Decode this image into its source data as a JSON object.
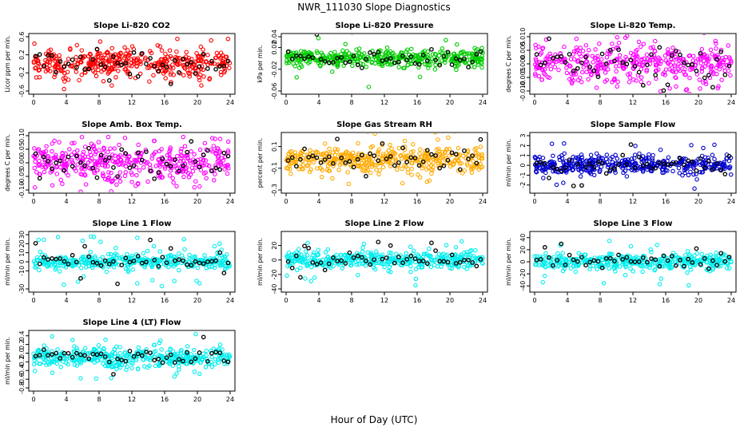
{
  "figure": {
    "title": "NWR_111030  Slope Diagnostics",
    "xlabel": "Hour of Day (UTC)"
  },
  "chart_data": [
    {
      "type": "scatter",
      "title": "Slope Li-820 CO2",
      "ylabel": "Licor ppm per min.",
      "color": "#ff0000",
      "xlim": [
        0,
        24
      ],
      "xticks": [
        "0",
        "4",
        "8",
        "12",
        "16",
        "20",
        "24"
      ],
      "ylim": [
        -0.6,
        0.6
      ],
      "yticks": [
        "-0.6",
        "-0.2",
        "0.2",
        "0.6"
      ],
      "ytick_values": [
        -0.6,
        -0.2,
        0.2,
        0.6
      ],
      "spread": 0.15,
      "outlier_range": 0.6,
      "mean_line": [
        [
          0,
          0.02
        ],
        [
          4,
          -0.05
        ],
        [
          8,
          0.0
        ],
        [
          12,
          0.08
        ],
        [
          16,
          0.0
        ],
        [
          20,
          -0.05
        ],
        [
          24,
          0.05
        ]
      ]
    },
    {
      "type": "scatter",
      "title": "Slope Li-820 Pressure",
      "ylabel": "kPa per min.",
      "color": "#00cc00",
      "xlim": [
        0,
        24
      ],
      "xticks": [
        "0",
        "4",
        "8",
        "12",
        "16",
        "20",
        "24"
      ],
      "ylim": [
        -0.06,
        0.04
      ],
      "yticks": [
        "-0.06",
        "-0.02",
        "0.02",
        "0.04"
      ],
      "ytick_values": [
        -0.06,
        -0.02,
        0.02,
        0.04
      ],
      "spread": 0.008,
      "outlier_range": 0.06,
      "mean_line": [
        [
          0,
          0.005
        ],
        [
          4,
          -0.002
        ],
        [
          8,
          0.0
        ],
        [
          12,
          0.0
        ],
        [
          16,
          -0.002
        ],
        [
          20,
          0.0
        ],
        [
          24,
          0.0
        ]
      ]
    },
    {
      "type": "scatter",
      "title": "Slope Li-820 Temp.",
      "ylabel": "degrees C per min.",
      "color": "#ff00ff",
      "xlim": [
        0,
        24
      ],
      "xticks": [
        "0",
        "4",
        "8",
        "12",
        "16",
        "20",
        "24"
      ],
      "ylim": [
        -0.01,
        0.01
      ],
      "yticks": [
        "-0.010",
        "-0.005",
        "0.000",
        "0.005",
        "0.010"
      ],
      "ytick_values": [
        -0.01,
        -0.005,
        0.0,
        0.005,
        0.01
      ],
      "spread": 0.0035,
      "outlier_range": 0.012,
      "mean_line": [
        [
          0,
          0.0
        ],
        [
          4,
          0.0005
        ],
        [
          8,
          -0.001
        ],
        [
          12,
          0.001
        ],
        [
          16,
          0.0
        ],
        [
          20,
          -0.0005
        ],
        [
          24,
          0.0
        ]
      ]
    },
    {
      "type": "scatter",
      "title": "Slope Amb. Box Temp.",
      "ylabel": "degrees C per min.",
      "color": "#ff00ff",
      "xlim": [
        0,
        24
      ],
      "xticks": [
        "0",
        "4",
        "8",
        "12",
        "16",
        "20",
        "24"
      ],
      "ylim": [
        -0.1,
        0.1
      ],
      "yticks": [
        "-0.10",
        "-0.05",
        "0.00",
        "0.05",
        "0.10"
      ],
      "ytick_values": [
        -0.1,
        -0.05,
        0.0,
        0.05,
        0.1
      ],
      "spread": 0.035,
      "outlier_range": 0.11,
      "mean_line": [
        [
          0,
          0.0
        ],
        [
          4,
          0.0
        ],
        [
          8,
          0.0
        ],
        [
          12,
          0.0
        ],
        [
          16,
          -0.01
        ],
        [
          20,
          0.0
        ],
        [
          24,
          0.0
        ]
      ]
    },
    {
      "type": "scatter",
      "title": "Slope Gas Stream RH",
      "ylabel": "percent per min.",
      "color": "#ffaa00",
      "xlim": [
        0,
        24
      ],
      "xticks": [
        "0",
        "4",
        "8",
        "12",
        "16",
        "20",
        "24"
      ],
      "ylim": [
        -0.3,
        0.2
      ],
      "yticks": [
        "-0.3",
        "-0.1",
        "0.1"
      ],
      "ytick_values": [
        -0.3,
        -0.1,
        0.1
      ],
      "spread": 0.06,
      "outlier_range": 0.25,
      "mean_line": [
        [
          0,
          -0.02
        ],
        [
          4,
          -0.03
        ],
        [
          8,
          -0.02
        ],
        [
          12,
          -0.01
        ],
        [
          16,
          -0.02
        ],
        [
          20,
          -0.02
        ],
        [
          24,
          -0.02
        ]
      ]
    },
    {
      "type": "scatter",
      "title": "Slope Sample Flow",
      "ylabel": "ml/min per min.",
      "color": "#0000cc",
      "xlim": [
        0,
        24
      ],
      "xticks": [
        "0",
        "4",
        "8",
        "12",
        "16",
        "20",
        "24"
      ],
      "ylim": [
        -2.5,
        3
      ],
      "yticks": [
        "-2",
        "-1",
        "0",
        "1",
        "2",
        "3"
      ],
      "ytick_values": [
        -2,
        -1,
        0,
        1,
        2,
        3
      ],
      "spread": 0.5,
      "outlier_range": 2.5,
      "mean_line": [
        [
          0,
          0.0
        ],
        [
          4,
          0.0
        ],
        [
          8,
          0.0
        ],
        [
          12,
          0.0
        ],
        [
          16,
          0.0
        ],
        [
          20,
          0.0
        ],
        [
          24,
          0.2
        ]
      ]
    },
    {
      "type": "scatter",
      "title": "Slope Line 1 Flow",
      "ylabel": "ml/min per min.",
      "color": "#00eeee",
      "xlim": [
        0,
        24
      ],
      "xticks": [
        "0",
        "4",
        "8",
        "12",
        "16",
        "20",
        "24"
      ],
      "ylim": [
        -30,
        30
      ],
      "yticks": [
        "-30",
        "-10",
        "0",
        "10",
        "20",
        "30"
      ],
      "ytick_values": [
        -30,
        -10,
        0,
        10,
        20,
        30
      ],
      "spread": 4,
      "outlier_range": 28,
      "mean_line": [
        [
          0,
          0
        ],
        [
          4,
          0
        ],
        [
          8,
          0
        ],
        [
          12,
          0
        ],
        [
          16,
          0
        ],
        [
          20,
          0
        ],
        [
          24,
          0
        ]
      ]
    },
    {
      "type": "scatter",
      "title": "Slope Line 2 Flow",
      "ylabel": "ml/min per min.",
      "color": "#00eeee",
      "xlim": [
        0,
        24
      ],
      "xticks": [
        "0",
        "4",
        "8",
        "12",
        "16",
        "20",
        "24"
      ],
      "ylim": [
        -40,
        35
      ],
      "yticks": [
        "-40",
        "-20",
        "0",
        "20"
      ],
      "ytick_values": [
        -40,
        -20,
        0,
        20
      ],
      "spread": 6,
      "outlier_range": 35,
      "mean_line": [
        [
          0,
          0
        ],
        [
          4,
          0
        ],
        [
          8,
          0
        ],
        [
          12,
          0
        ],
        [
          16,
          0
        ],
        [
          20,
          0
        ],
        [
          24,
          0
        ]
      ]
    },
    {
      "type": "scatter",
      "title": "Slope Line 3 Flow",
      "ylabel": "ml/min per min.",
      "color": "#00eeee",
      "xlim": [
        0,
        24
      ],
      "xticks": [
        "0",
        "4",
        "8",
        "12",
        "16",
        "20",
        "24"
      ],
      "ylim": [
        -45,
        45
      ],
      "yticks": [
        "-40",
        "-20",
        "0",
        "20",
        "40"
      ],
      "ytick_values": [
        -40,
        -20,
        0,
        20,
        40
      ],
      "spread": 6,
      "outlier_range": 40,
      "mean_line": [
        [
          0,
          0
        ],
        [
          4,
          0
        ],
        [
          8,
          0
        ],
        [
          12,
          0
        ],
        [
          16,
          0
        ],
        [
          20,
          0
        ],
        [
          24,
          0
        ]
      ]
    },
    {
      "type": "scatter",
      "title": "Slope Line 4 (LT) Flow",
      "ylabel": "ml/min per min.",
      "color": "#00eeee",
      "xlim": [
        0,
        24
      ],
      "xticks": [
        "0",
        "4",
        "8",
        "12",
        "16",
        "20",
        "24"
      ],
      "ylim": [
        -0.8,
        0.45
      ],
      "yticks": [
        "-0.8",
        "-0.6",
        "-0.4",
        "-0.2",
        "0.0",
        "0.2",
        "0.4"
      ],
      "ytick_values": [
        -0.8,
        -0.6,
        -0.4,
        -0.2,
        0.0,
        0.2,
        0.4
      ],
      "spread": 0.12,
      "outlier_range": 0.6,
      "mean_line": [
        [
          0,
          -0.1
        ],
        [
          4,
          -0.1
        ],
        [
          8,
          -0.08
        ],
        [
          12,
          -0.1
        ],
        [
          16,
          -0.12
        ],
        [
          20,
          -0.12
        ],
        [
          24,
          -0.1
        ]
      ]
    }
  ]
}
